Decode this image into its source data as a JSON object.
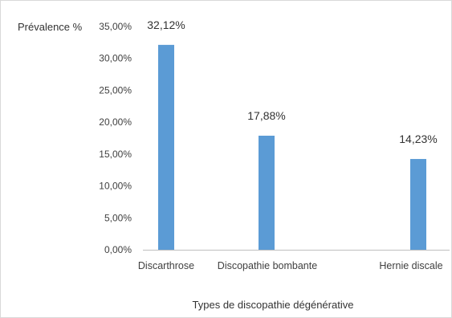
{
  "chart_data": {
    "type": "bar",
    "categories": [
      "Discarthrose",
      "Discopathie bombante",
      "Hernie discale"
    ],
    "values": [
      32.12,
      17.88,
      14.23
    ],
    "value_labels": [
      "32,12%",
      "17,88%",
      "14,23%"
    ],
    "title": "",
    "xlabel": "Types de discopathie dégénérative",
    "ylabel": "Prévalence %",
    "ylim": [
      0,
      35
    ],
    "yticks": [
      0,
      5,
      10,
      15,
      20,
      25,
      30,
      35
    ],
    "ytick_labels": [
      "0,00%",
      "5,00%",
      "10,00%",
      "15,00%",
      "20,00%",
      "25,00%",
      "30,00%",
      "35,00%"
    ],
    "grid": false,
    "legend": "none",
    "bar_color": "#5b9bd5",
    "axis_color": "#bfbfbf"
  }
}
